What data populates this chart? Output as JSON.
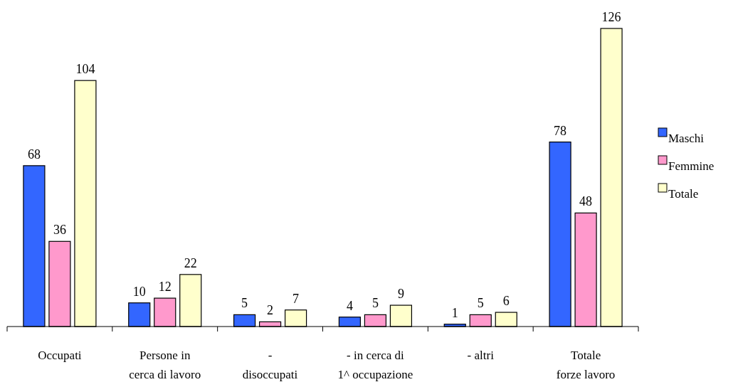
{
  "chart_data": {
    "type": "bar",
    "categories": [
      "Occupati",
      "Persone in cerca di lavoro",
      "- disoccupati",
      "- in cerca di 1^ occupazione",
      "- altri",
      "Totale forze lavoro"
    ],
    "series": [
      {
        "name": "Maschi",
        "color": "#3366ff",
        "values": [
          68,
          10,
          5,
          4,
          1,
          78
        ]
      },
      {
        "name": "Femmine",
        "color": "#ff99cc",
        "values": [
          36,
          12,
          2,
          5,
          5,
          48
        ]
      },
      {
        "name": "Totale",
        "color": "#ffffcc",
        "values": [
          104,
          22,
          7,
          9,
          6,
          126
        ]
      }
    ],
    "data_labels": true,
    "legend": "right"
  }
}
